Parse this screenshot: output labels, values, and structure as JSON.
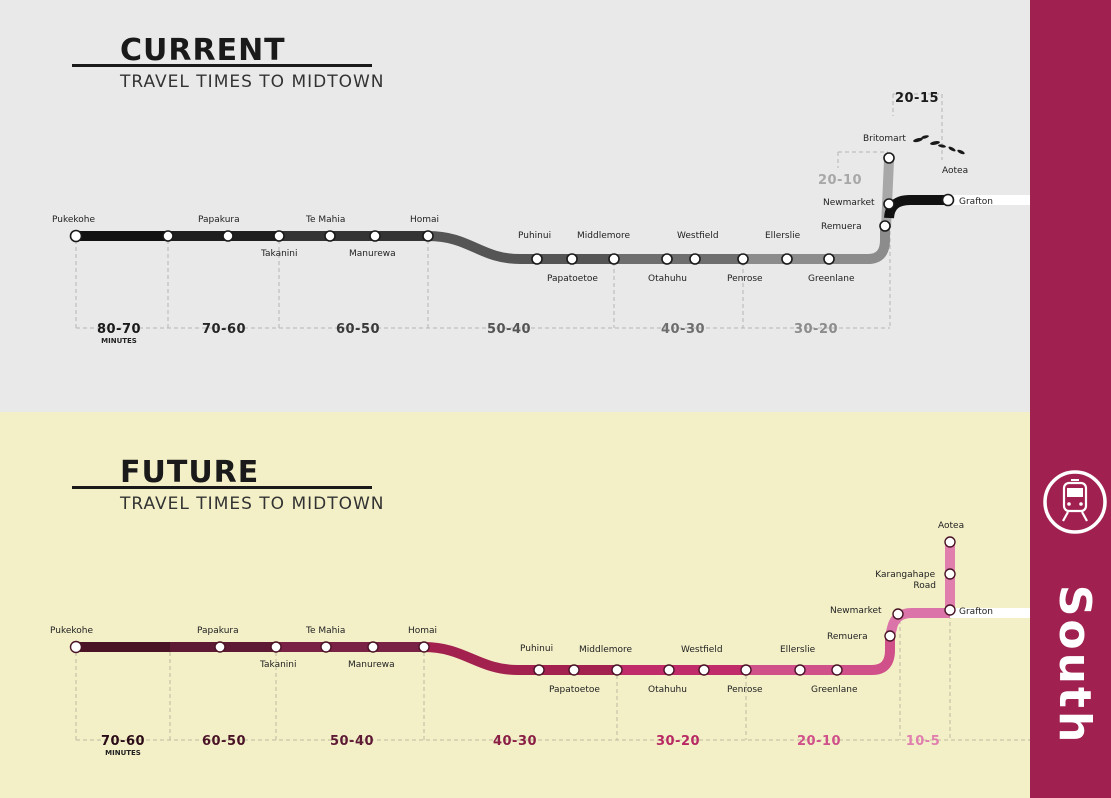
{
  "sidebar": {
    "label": "South",
    "icon": "train-icon",
    "color": "#a0214f"
  },
  "current": {
    "title": "CURRENT",
    "subtitle": "TRAVEL TIMES TO MIDTOWN",
    "background": "#e9e9ea",
    "stations": [
      "Pukekohe",
      "Papakura",
      "Takanini",
      "Te Mahia",
      "Manurewa",
      "Homai",
      "Puhinui",
      "Papatoetoe",
      "Middlemore",
      "Otahuhu",
      "Westfield",
      "Penrose",
      "Ellerslie",
      "Greenlane",
      "Remuera",
      "Newmarket",
      "Britomart",
      "Aotea",
      "Grafton"
    ],
    "bands": [
      "80-70",
      "70-60",
      "60-50",
      "50-40",
      "40-30",
      "30-20",
      "20-10",
      "20-15"
    ],
    "bands_unit": "MINUTES"
  },
  "future": {
    "title": "FUTURE",
    "subtitle": "TRAVEL TIMES TO MIDTOWN",
    "background": "#f3f0c8",
    "stations": [
      "Pukekohe",
      "Papakura",
      "Takanini",
      "Te Mahia",
      "Manurewa",
      "Homai",
      "Puhinui",
      "Papatoetoe",
      "Middlemore",
      "Otahuhu",
      "Westfield",
      "Penrose",
      "Ellerslie",
      "Greenlane",
      "Remuera",
      "Newmarket",
      "Grafton",
      "Karangahape Road",
      "Aotea"
    ],
    "bands": [
      "70-60",
      "60-50",
      "50-40",
      "40-30",
      "30-20",
      "20-10",
      "10-5"
    ],
    "bands_unit": "MINUTES"
  }
}
